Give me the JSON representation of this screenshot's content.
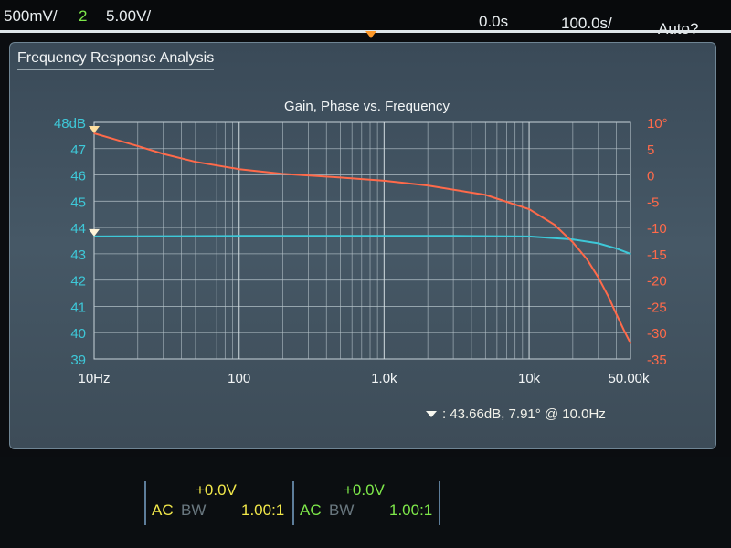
{
  "status_bar": {
    "ch1_scale": "500mV/",
    "ch2_number": "2",
    "ch2_scale": "5.00V/",
    "delay": "0.0s",
    "timebase": "100.0s/",
    "trigger_mode": "Auto?"
  },
  "panel": {
    "title": "Frequency Response Analysis"
  },
  "channels": [
    {
      "offset": "+0.0V",
      "coupling": "AC",
      "bw": "BW",
      "probe": "1.00:1",
      "color": "#f2e84a"
    },
    {
      "offset": "+0.0V",
      "coupling": "AC",
      "bw": "BW",
      "probe": "1.00:1",
      "color": "#7ee84a"
    }
  ],
  "chart_data": {
    "type": "line",
    "title": "Gain, Phase vs. Frequency",
    "x_scale": "log",
    "xlim": [
      10,
      50000
    ],
    "x_ticks": [
      "10Hz",
      "100",
      "1.0k",
      "10k",
      "50.00k"
    ],
    "y_left": {
      "ylim": [
        39,
        48
      ],
      "ticks": [
        "48dB",
        "47",
        "46",
        "45",
        "44",
        "43",
        "42",
        "41",
        "40",
        "39"
      ],
      "color": "#3ec8d8"
    },
    "y_right": {
      "ylim": [
        -35,
        10
      ],
      "ticks": [
        "10°",
        "5",
        "0",
        "-5",
        "-10",
        "-15",
        "-20",
        "-25",
        "-30",
        "-35"
      ],
      "color": "#ff6a4a"
    },
    "grid": true,
    "series": [
      {
        "axis": "left",
        "color": "#3ec8d8",
        "x": [
          10,
          30,
          100,
          300,
          1000,
          3000,
          10000,
          20000,
          30000,
          40000,
          50000
        ],
        "y": [
          43.66,
          43.67,
          43.68,
          43.68,
          43.68,
          43.68,
          43.66,
          43.55,
          43.4,
          43.2,
          43.0
        ]
      },
      {
        "axis": "right",
        "color": "#ff6a4a",
        "x": [
          10,
          20,
          30,
          50,
          100,
          200,
          500,
          1000,
          2000,
          5000,
          10000,
          15000,
          20000,
          25000,
          30000,
          35000,
          40000,
          45000,
          50000
        ],
        "y": [
          7.91,
          5.5,
          4,
          2.5,
          1.1,
          0.2,
          -0.5,
          -1.1,
          -2,
          -3.8,
          -6.5,
          -9.5,
          -12.8,
          -16,
          -19.5,
          -23,
          -26.5,
          -29.5,
          -32
        ]
      }
    ],
    "cursor_readout": ": 43.66dB, 7.91° @ 10.0Hz"
  }
}
